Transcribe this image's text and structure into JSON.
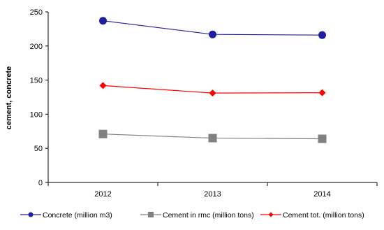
{
  "chart_data": {
    "type": "line",
    "title": "",
    "xlabel": "",
    "ylabel": "cement, concrete",
    "categories": [
      "2012",
      "2013",
      "2014"
    ],
    "ylim": [
      0,
      250
    ],
    "yticks": [
      0,
      50,
      100,
      150,
      200,
      250
    ],
    "grid": false,
    "legend_position": "bottom",
    "series": [
      {
        "name": "Concrete (million m3)",
        "values": [
          237,
          217,
          216
        ],
        "color": "#1f1fa0",
        "marker": "circle"
      },
      {
        "name": "Cement in rmc (million tons)",
        "values": [
          71,
          65,
          64
        ],
        "color": "#808080",
        "marker": "square"
      },
      {
        "name": "Cement tot. (million tons)",
        "values": [
          142,
          131,
          131.5
        ],
        "color": "#ff0000",
        "marker": "diamond"
      }
    ]
  }
}
